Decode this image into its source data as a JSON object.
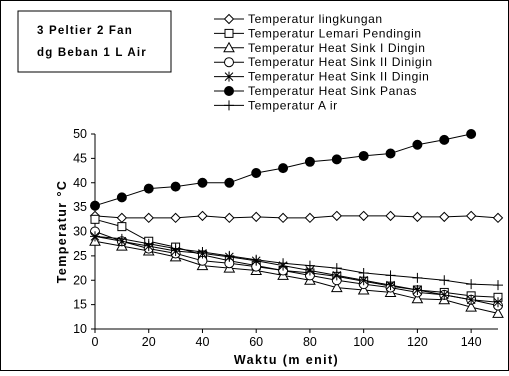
{
  "chart_data": {
    "type": "line",
    "annotation": [
      "3 Peltier 2 Fan",
      "dg Beban 1 L Air"
    ],
    "xlabel": "Waktu (m enit)",
    "ylabel": "Temperatur °C",
    "xlim": [
      0,
      150
    ],
    "ylim": [
      10,
      50
    ],
    "x_ticks": [
      0,
      20,
      40,
      60,
      80,
      100,
      120,
      140
    ],
    "y_ticks": [
      10,
      15,
      20,
      25,
      30,
      35,
      40,
      45,
      50
    ],
    "grid": false,
    "legend_position": "top-right",
    "x": [
      0,
      10,
      20,
      30,
      40,
      50,
      60,
      70,
      80,
      90,
      100,
      110,
      120,
      130,
      140,
      150
    ],
    "series": [
      {
        "name": "Temperatur lingkungan",
        "marker": "diamond-open",
        "values": [
          33.2,
          32.8,
          32.8,
          32.8,
          33.2,
          32.8,
          33.0,
          32.8,
          32.8,
          33.2,
          33.2,
          33.2,
          33.0,
          33.0,
          33.2,
          32.8
        ]
      },
      {
        "name": "Temperatur Lemari Pendingin",
        "marker": "square-open",
        "values": [
          32.5,
          31.0,
          28.0,
          26.8,
          25.2,
          24.0,
          23.0,
          22.0,
          21.5,
          20.8,
          19.8,
          18.8,
          18.0,
          17.5,
          16.8,
          16.5
        ]
      },
      {
        "name": "Temperatur Heat Sink I Dingin",
        "marker": "triangle-open",
        "values": [
          28.0,
          27.0,
          26.0,
          24.8,
          23.0,
          22.5,
          22.0,
          21.0,
          20.0,
          18.5,
          18.0,
          17.5,
          16.2,
          16.0,
          14.5,
          13.2
        ]
      },
      {
        "name": "Temperatur Heat Sink II Dinigin",
        "marker": "circle-open",
        "values": [
          30.0,
          28.0,
          26.5,
          25.5,
          24.0,
          23.5,
          22.8,
          22.0,
          21.0,
          20.0,
          19.2,
          18.5,
          17.5,
          17.0,
          16.0,
          14.8
        ]
      },
      {
        "name": "Temperatur Heat Sink II Dingin",
        "marker": "asterisk",
        "values": [
          29.0,
          28.0,
          27.0,
          26.0,
          25.5,
          24.8,
          24.0,
          23.0,
          22.0,
          21.0,
          20.0,
          19.0,
          18.0,
          17.0,
          16.0,
          15.5
        ]
      },
      {
        "name": "Temperatur Heat Sink Panas",
        "marker": "circle-filled",
        "values": [
          35.3,
          37.0,
          38.8,
          39.2,
          40.0,
          40.0,
          42.0,
          43.0,
          44.3,
          44.8,
          45.5,
          46.0,
          47.8,
          48.8,
          50.0,
          null
        ]
      },
      {
        "name": "Temperatur A ir",
        "marker": "plus",
        "values": [
          29.0,
          28.5,
          27.5,
          26.5,
          25.8,
          25.0,
          24.2,
          23.5,
          23.0,
          22.5,
          21.5,
          21.0,
          20.5,
          20.0,
          19.2,
          19.0
        ]
      }
    ]
  }
}
